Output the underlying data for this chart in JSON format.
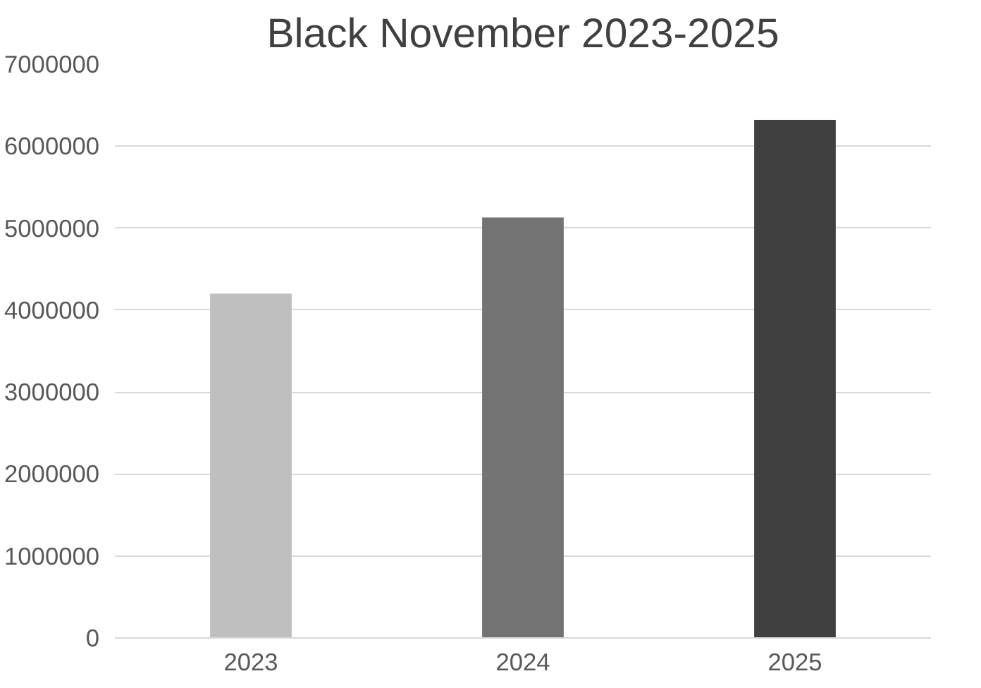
{
  "chart_data": {
    "type": "bar",
    "title": "Black November 2023-2025",
    "categories": [
      "2023",
      "2024",
      "2025"
    ],
    "values": [
      4200000,
      5130000,
      6320000
    ],
    "colors": [
      "#bfbfbf",
      "#737373",
      "#404040"
    ],
    "ylim": [
      0,
      7000000
    ],
    "yticks": [
      0,
      1000000,
      2000000,
      3000000,
      4000000,
      5000000,
      6000000,
      7000000
    ],
    "grid": "y"
  }
}
